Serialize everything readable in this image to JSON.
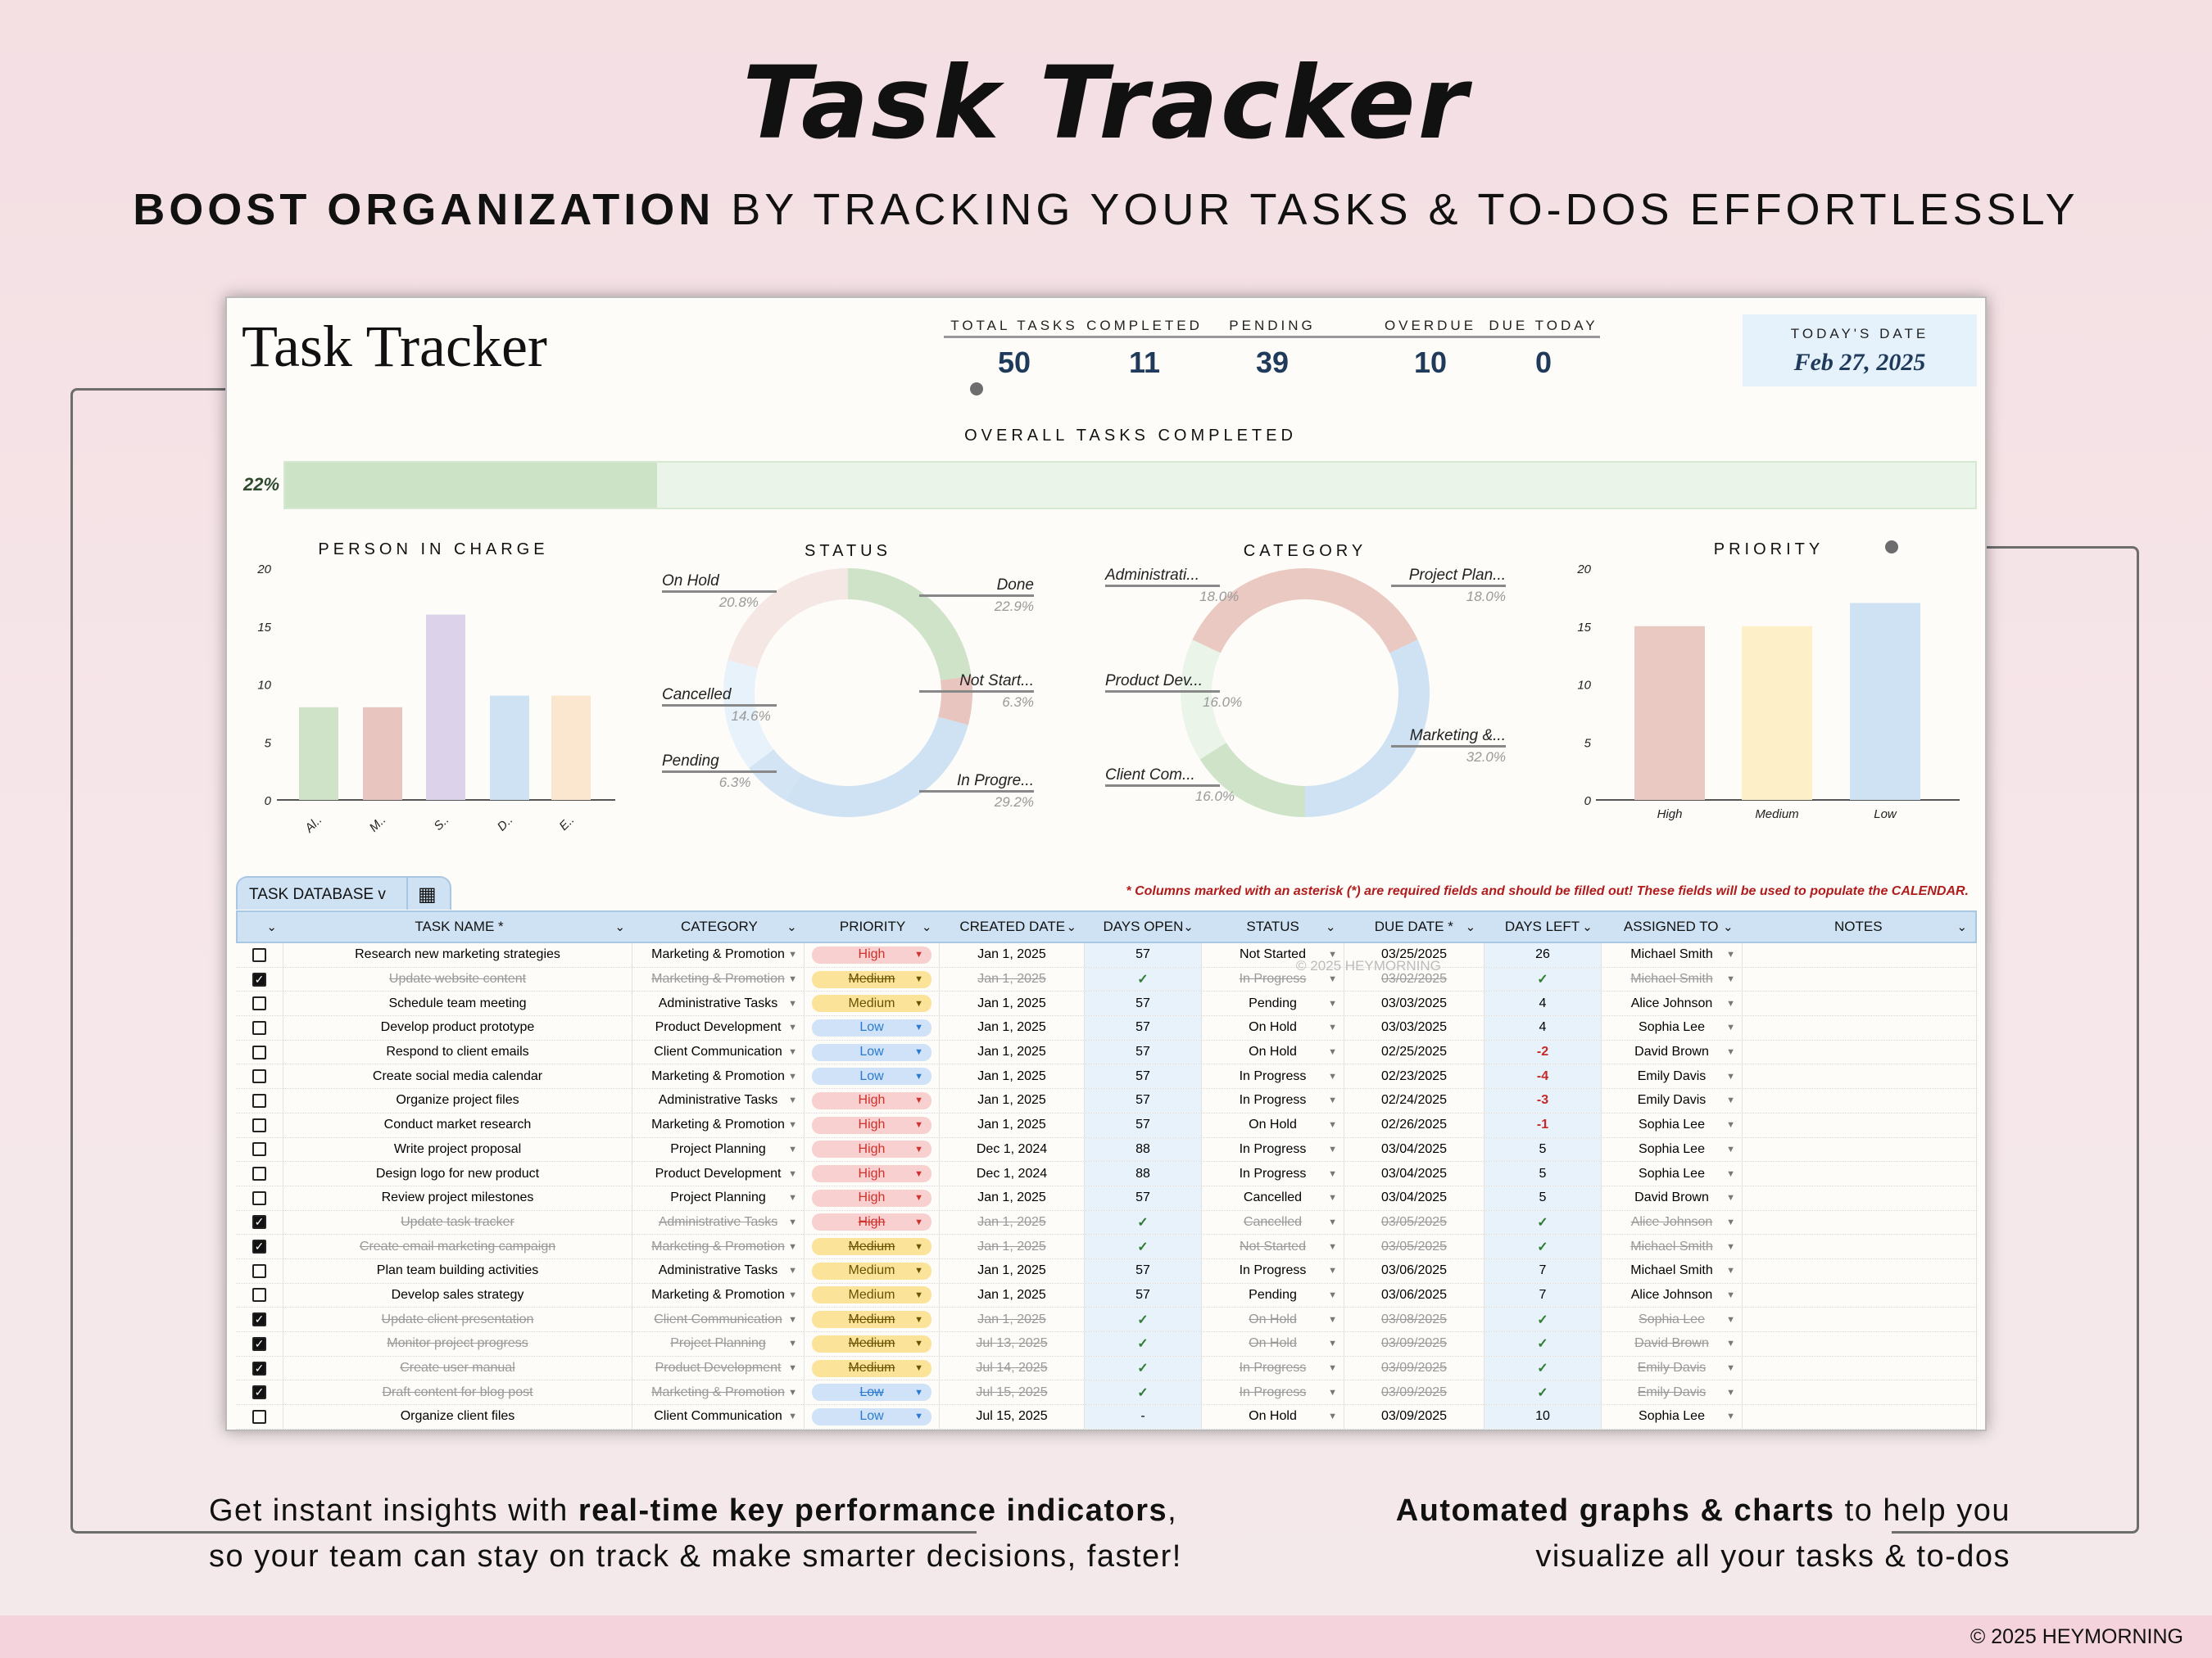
{
  "hero": {
    "title": "Task Tracker",
    "subtitle_bold": "BOOST ORGANIZATION",
    "subtitle_rest": " BY TRACKING YOUR TASKS & TO-DOS EFFORTLESSLY"
  },
  "dashboard": {
    "title": "Task Tracker",
    "kpis": [
      {
        "label": "TOTAL TASKS",
        "value": "50"
      },
      {
        "label": "COMPLETED",
        "value": "11"
      },
      {
        "label": "PENDING",
        "value": "39"
      },
      {
        "label": "OVERDUE",
        "value": "10"
      },
      {
        "label": "DUE TODAY",
        "value": "0"
      }
    ],
    "today_label": "TODAY'S DATE",
    "today_value": "Feb 27, 2025",
    "progress": {
      "label": "OVERALL TASKS COMPLETED",
      "percent_text": "22%",
      "percent": 22,
      "fill_color": "#cde3c6"
    }
  },
  "chart_data": [
    {
      "type": "bar",
      "title": "PERSON IN CHARGE",
      "categories": [
        "Al..",
        "M..",
        "S..",
        "D..",
        "E.."
      ],
      "values": [
        8,
        8,
        16,
        9,
        9
      ],
      "colors": [
        "#cfe3c8",
        "#e8c6bf",
        "#dcd3ea",
        "#cfe2f3",
        "#fbe6cf"
      ],
      "ylim": [
        0,
        20
      ],
      "yticks": [
        "0",
        "5",
        "10",
        "15",
        "20"
      ],
      "grid": false
    },
    {
      "type": "pie",
      "title": "STATUS",
      "donut": true,
      "slices": [
        {
          "label": "Done",
          "pct_text": "22.9%",
          "value": 22.9,
          "color": "#cfe3c8"
        },
        {
          "label": "Not Start...",
          "pct_text": "6.3%",
          "value": 6.3,
          "color": "#e8c6bf"
        },
        {
          "label": "In Progre...",
          "pct_text": "29.2%",
          "value": 29.2,
          "color": "#cfe2f3"
        },
        {
          "label": "Pending",
          "pct_text": "6.3%",
          "value": 6.3,
          "color": "#d3e5f4"
        },
        {
          "label": "Cancelled",
          "pct_text": "14.6%",
          "value": 14.6,
          "color": "#e7f2fb"
        },
        {
          "label": "On Hold",
          "pct_text": "20.8%",
          "value": 20.8,
          "color": "#f5e7e4"
        }
      ]
    },
    {
      "type": "pie",
      "title": "CATEGORY",
      "donut": true,
      "slices": [
        {
          "label": "Project Plan...",
          "pct_text": "18.0%",
          "value": 18,
          "color": "#e9c9c1"
        },
        {
          "label": "Marketing &...",
          "pct_text": "32.0%",
          "value": 32,
          "color": "#cfe2f3"
        },
        {
          "label": "Client Com...",
          "pct_text": "16.0%",
          "value": 16,
          "color": "#cfe3c8"
        },
        {
          "label": "Product Dev...",
          "pct_text": "16.0%",
          "value": 16,
          "color": "#eaf4e8"
        },
        {
          "label": "Administrati...",
          "pct_text": "18.0%",
          "value": 18,
          "color": "#e9c9c1"
        }
      ]
    },
    {
      "type": "bar",
      "title": "PRIORITY",
      "categories": [
        "High",
        "Medium",
        "Low"
      ],
      "values": [
        15,
        15,
        17
      ],
      "colors": [
        "#e9c9c1",
        "#fdf0c8",
        "#cfe2f3"
      ],
      "ylim": [
        0,
        20
      ],
      "yticks": [
        "0",
        "5",
        "10",
        "15",
        "20"
      ],
      "grid": false
    }
  ],
  "table": {
    "tab_label": "TASK DATABASE",
    "tab_chevron": "v",
    "note": "* Columns marked with an asterisk (*) are required fields and should be filled out! These fields will be used to populate the CALENDAR.",
    "watermark": "© 2025 HEYMORNING",
    "headers": [
      "",
      "TASK NAME *",
      "CATEGORY",
      "PRIORITY",
      "CREATED DATE",
      "DAYS OPEN",
      "STATUS",
      "DUE DATE *",
      "DAYS LEFT",
      "ASSIGNED TO",
      "NOTES"
    ],
    "priority_colors": {
      "High": {
        "bg": "#f7d0cf",
        "fg": "#d0312d"
      },
      "Medium": {
        "bg": "#fbe39a",
        "fg": "#6b5200"
      },
      "Low": {
        "bg": "#cfe2f7",
        "fg": "#2a7bd0"
      }
    },
    "rows": [
      {
        "done": false,
        "task": "Research new marketing strategies",
        "category": "Marketing & Promotion",
        "priority": "High",
        "created": "Jan 1, 2025",
        "days_open": "57",
        "status": "Not Started",
        "due": "03/25/2025",
        "days_left": "26",
        "assigned": "Michael Smith",
        "notes": ""
      },
      {
        "done": true,
        "task": "Update website content",
        "category": "Marketing & Promotion",
        "priority": "Medium",
        "created": "Jan 1, 2025",
        "days_open": "✓",
        "status": "In Progress",
        "due": "03/02/2025",
        "days_left": "✓",
        "assigned": "Michael Smith",
        "notes": ""
      },
      {
        "done": false,
        "task": "Schedule team meeting",
        "category": "Administrative Tasks",
        "priority": "Medium",
        "created": "Jan 1, 2025",
        "days_open": "57",
        "status": "Pending",
        "due": "03/03/2025",
        "days_left": "4",
        "assigned": "Alice Johnson",
        "notes": ""
      },
      {
        "done": false,
        "task": "Develop product prototype",
        "category": "Product Development",
        "priority": "Low",
        "created": "Jan 1, 2025",
        "days_open": "57",
        "status": "On Hold",
        "due": "03/03/2025",
        "days_left": "4",
        "assigned": "Sophia Lee",
        "notes": ""
      },
      {
        "done": false,
        "task": "Respond to client emails",
        "category": "Client Communication",
        "priority": "Low",
        "created": "Jan 1, 2025",
        "days_open": "57",
        "status": "On Hold",
        "due": "02/25/2025",
        "days_left": "-2",
        "assigned": "David Brown",
        "notes": ""
      },
      {
        "done": false,
        "task": "Create social media calendar",
        "category": "Marketing & Promotion",
        "priority": "Low",
        "created": "Jan 1, 2025",
        "days_open": "57",
        "status": "In Progress",
        "due": "02/23/2025",
        "days_left": "-4",
        "assigned": "Emily Davis",
        "notes": ""
      },
      {
        "done": false,
        "task": "Organize project files",
        "category": "Administrative Tasks",
        "priority": "High",
        "created": "Jan 1, 2025",
        "days_open": "57",
        "status": "In Progress",
        "due": "02/24/2025",
        "days_left": "-3",
        "assigned": "Emily Davis",
        "notes": ""
      },
      {
        "done": false,
        "task": "Conduct market research",
        "category": "Marketing & Promotion",
        "priority": "High",
        "created": "Jan 1, 2025",
        "days_open": "57",
        "status": "On Hold",
        "due": "02/26/2025",
        "days_left": "-1",
        "assigned": "Sophia Lee",
        "notes": ""
      },
      {
        "done": false,
        "task": "Write project proposal",
        "category": "Project Planning",
        "priority": "High",
        "created": "Dec 1, 2024",
        "days_open": "88",
        "status": "In Progress",
        "due": "03/04/2025",
        "days_left": "5",
        "assigned": "Sophia Lee",
        "notes": ""
      },
      {
        "done": false,
        "task": "Design logo for new product",
        "category": "Product Development",
        "priority": "High",
        "created": "Dec 1, 2024",
        "days_open": "88",
        "status": "In Progress",
        "due": "03/04/2025",
        "days_left": "5",
        "assigned": "Sophia Lee",
        "notes": ""
      },
      {
        "done": false,
        "task": "Review project milestones",
        "category": "Project Planning",
        "priority": "High",
        "created": "Jan 1, 2025",
        "days_open": "57",
        "status": "Cancelled",
        "due": "03/04/2025",
        "days_left": "5",
        "assigned": "David Brown",
        "notes": ""
      },
      {
        "done": true,
        "task": "Update task tracker",
        "category": "Administrative Tasks",
        "priority": "High",
        "created": "Jan 1, 2025",
        "days_open": "✓",
        "status": "Cancelled",
        "due": "03/05/2025",
        "days_left": "✓",
        "assigned": "Alice Johnson",
        "notes": ""
      },
      {
        "done": true,
        "task": "Create email marketing campaign",
        "category": "Marketing & Promotion",
        "priority": "Medium",
        "created": "Jan 1, 2025",
        "days_open": "✓",
        "status": "Not Started",
        "due": "03/05/2025",
        "days_left": "✓",
        "assigned": "Michael Smith",
        "notes": ""
      },
      {
        "done": false,
        "task": "Plan team building activities",
        "category": "Administrative Tasks",
        "priority": "Medium",
        "created": "Jan 1, 2025",
        "days_open": "57",
        "status": "In Progress",
        "due": "03/06/2025",
        "days_left": "7",
        "assigned": "Michael Smith",
        "notes": ""
      },
      {
        "done": false,
        "task": "Develop sales strategy",
        "category": "Marketing & Promotion",
        "priority": "Medium",
        "created": "Jan 1, 2025",
        "days_open": "57",
        "status": "Pending",
        "due": "03/06/2025",
        "days_left": "7",
        "assigned": "Alice Johnson",
        "notes": ""
      },
      {
        "done": true,
        "task": "Update client presentation",
        "category": "Client Communication",
        "priority": "Medium",
        "created": "Jan 1, 2025",
        "days_open": "✓",
        "status": "On Hold",
        "due": "03/08/2025",
        "days_left": "✓",
        "assigned": "Sophia Lee",
        "notes": ""
      },
      {
        "done": true,
        "task": "Monitor project progress",
        "category": "Project Planning",
        "priority": "Medium",
        "created": "Jul 13, 2025",
        "days_open": "✓",
        "status": "On Hold",
        "due": "03/09/2025",
        "days_left": "✓",
        "assigned": "David Brown",
        "notes": ""
      },
      {
        "done": true,
        "task": "Create user manual",
        "category": "Product Development",
        "priority": "Medium",
        "created": "Jul 14, 2025",
        "days_open": "✓",
        "status": "In Progress",
        "due": "03/09/2025",
        "days_left": "✓",
        "assigned": "Emily Davis",
        "notes": ""
      },
      {
        "done": true,
        "task": "Draft content for blog post",
        "category": "Marketing & Promotion",
        "priority": "Low",
        "created": "Jul 15, 2025",
        "days_open": "✓",
        "status": "In Progress",
        "due": "03/09/2025",
        "days_left": "✓",
        "assigned": "Emily Davis",
        "notes": ""
      },
      {
        "done": false,
        "task": "Organize client files",
        "category": "Client Communication",
        "priority": "Low",
        "created": "Jul 15, 2025",
        "days_open": "-",
        "status": "On Hold",
        "due": "03/09/2025",
        "days_left": "10",
        "assigned": "Sophia Lee",
        "notes": ""
      }
    ]
  },
  "captions": {
    "left_1_a": "Get instant insights with ",
    "left_1_b": "real-time key performance indicators",
    "left_1_c": ",",
    "left_2": "so your team can stay on track & make smarter decisions, faster!",
    "right_1_a": "Automated graphs & charts",
    "right_1_b": " to help you",
    "right_2": "visualize all your tasks & to-dos"
  },
  "footer": {
    "copyright": "© 2025 HEYMORNING"
  }
}
